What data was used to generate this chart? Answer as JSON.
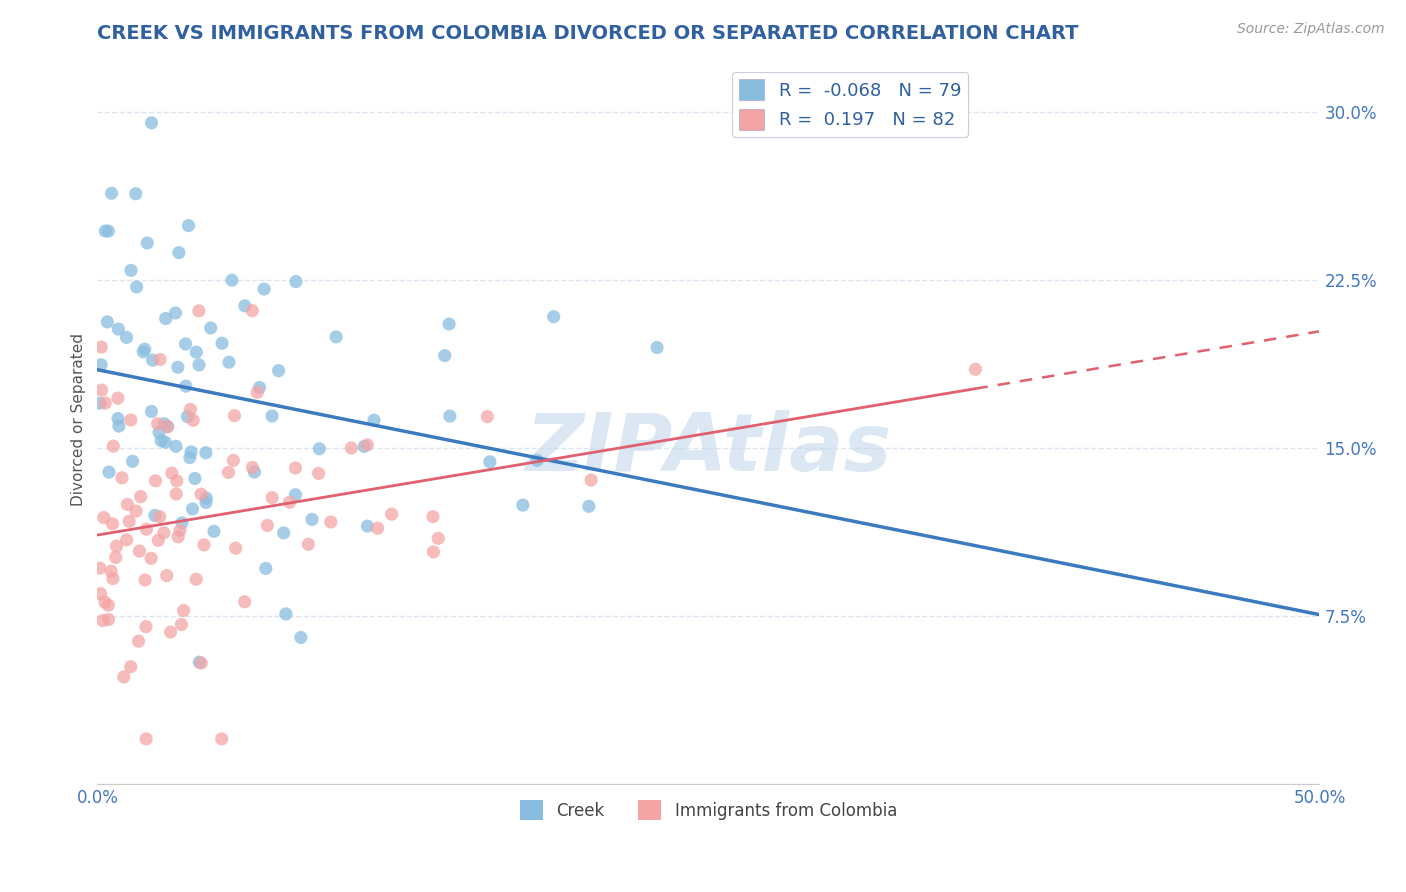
{
  "title": "CREEK VS IMMIGRANTS FROM COLOMBIA DIVORCED OR SEPARATED CORRELATION CHART",
  "source_text": "Source: ZipAtlas.com",
  "ylabel": "Divorced or Separated",
  "series1_label": "Creek",
  "series2_label": "Immigrants from Colombia",
  "R1": -0.068,
  "N1": 79,
  "R2": 0.197,
  "N2": 82,
  "color1": "#89bde0",
  "color2": "#f4a4a4",
  "line1_color": "#3a7bbf",
  "line2_color": "#e06070",
  "xlim": [
    0.0,
    0.5
  ],
  "ylim": [
    0.0,
    0.325
  ],
  "ytick_vals": [
    0.0,
    0.075,
    0.15,
    0.225,
    0.3
  ],
  "ytick_labels": [
    "",
    "7.5%",
    "15.0%",
    "22.5%",
    "30.0%"
  ],
  "xtick_vals": [
    0.0,
    0.05,
    0.1,
    0.15,
    0.2,
    0.25,
    0.3,
    0.35,
    0.4,
    0.45,
    0.5
  ],
  "xtick_labels": [
    "0.0%",
    "",
    "",
    "",
    "",
    "",
    "",
    "",
    "",
    "",
    "50.0%"
  ],
  "watermark": "ZIPAtlas",
  "watermark_color": "#c5d8ee",
  "title_color": "#3060a0",
  "axis_label_color": "#555555",
  "tick_color": "#4477bb",
  "grid_color": "#dde5f0",
  "background_color": "#ffffff",
  "title_fontsize": 14,
  "axis_label_fontsize": 11,
  "tick_fontsize": 12,
  "source_fontsize": 10
}
